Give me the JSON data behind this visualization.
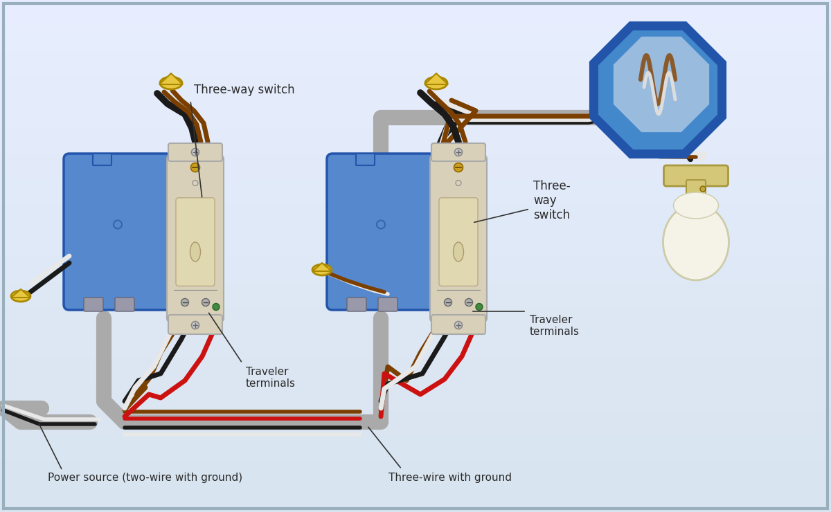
{
  "bg_color": "#d8e4ef",
  "bg_color2": "#c8d8e8",
  "border_color": "#9aafbe",
  "label_three_way_switch_1": "Three-way switch",
  "label_three_way_switch_2": "Three-\nway\nswitch",
  "label_traveler_1": "Traveler\nterminals",
  "label_traveler_2": "Traveler\nterminals",
  "label_power_source": "Power source (two-wire with ground)",
  "label_three_wire": "Three-wire with ground",
  "text_color": "#2a2a2a",
  "wire_gray": "#888888",
  "wire_gray_outer": "#aaaaaa",
  "wire_black": "#1a1a1a",
  "wire_white": "#e8e8e8",
  "wire_red": "#cc1111",
  "wire_brown": "#7B3F00",
  "wire_tip_yellow": "#e8c840",
  "box_blue_face": "#5588cc",
  "box_blue_edge": "#2255aa",
  "switch_body_color": "#d8d0b8",
  "switch_border_color": "#aaaaaa",
  "switch_screw_gold": "#c8a020",
  "switch_screw_green": "#448844",
  "switch_paddle": "#e0d8b0",
  "oct_outer": "#2255aa",
  "oct_inner": "#4488cc",
  "oct_light_inner": "#99bbdd",
  "bulb_glass": "#f5f2e8",
  "bulb_glass_edge": "#ccccaa",
  "socket_face": "#d4c878",
  "socket_edge": "#a89840"
}
